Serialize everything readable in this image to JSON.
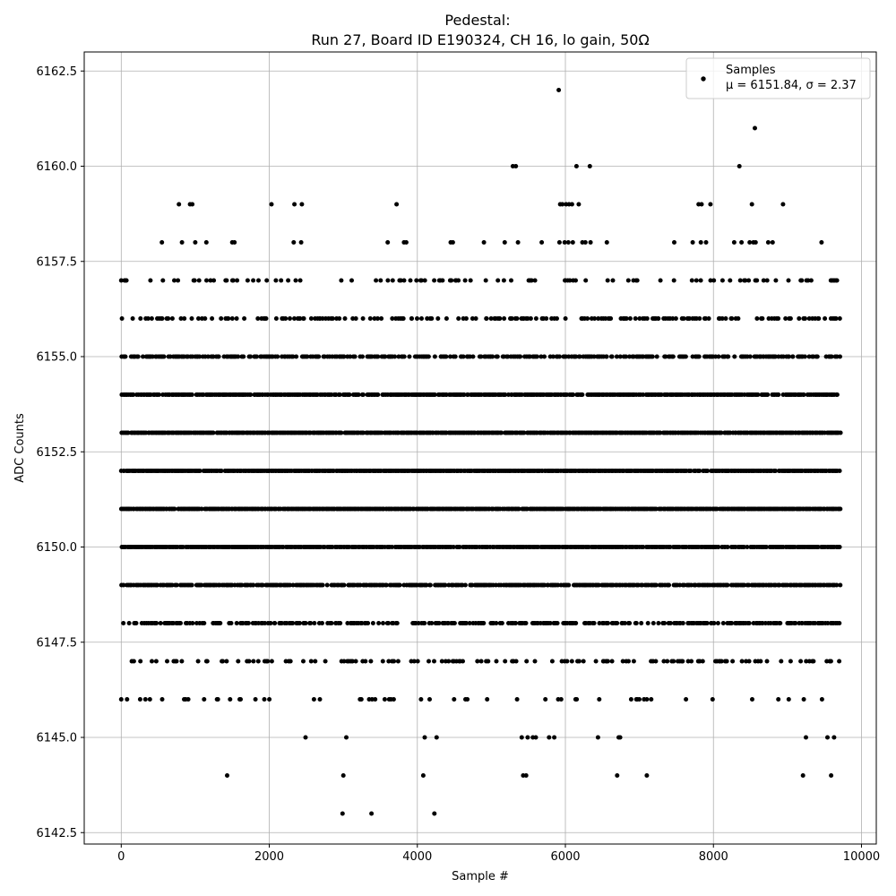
{
  "chart_data": {
    "type": "scatter",
    "title_line1": "Pedestal:",
    "title_line2": "Run 27, Board ID E190324, CH 16, lo gain, 50Ω",
    "xlabel": "Sample #",
    "ylabel": "ADC Counts",
    "xlim": [
      -500,
      10200
    ],
    "ylim": [
      6142.2,
      6163.0
    ],
    "xticks": [
      0,
      2000,
      4000,
      6000,
      8000,
      10000
    ],
    "xtick_labels": [
      "0",
      "2000",
      "4000",
      "6000",
      "8000",
      "10000"
    ],
    "yticks": [
      6142.5,
      6145.0,
      6147.5,
      6150.0,
      6152.5,
      6155.0,
      6157.5,
      6160.0,
      6162.5
    ],
    "ytick_labels": [
      "6142.5",
      "6145.0",
      "6147.5",
      "6150.0",
      "6152.5",
      "6155.0",
      "6157.5",
      "6160.0",
      "6162.5"
    ],
    "grid": true,
    "legend_position": "top-right",
    "marker_color": "#000000",
    "series": [
      {
        "name": "Samples",
        "stats_label": "μ = 6151.84, σ = 2.37",
        "n_samples": 9728,
        "bands": [
          {
            "y": 6148,
            "x_start": 0,
            "x_end": 9720,
            "density": 0.55
          },
          {
            "y": 6149,
            "x_start": 0,
            "x_end": 9720,
            "density": 0.8
          },
          {
            "y": 6150,
            "x_start": 0,
            "x_end": 9720,
            "density": 0.92
          },
          {
            "y": 6151,
            "x_start": 0,
            "x_end": 9720,
            "density": 0.97
          },
          {
            "y": 6152,
            "x_start": 0,
            "x_end": 9720,
            "density": 0.97
          },
          {
            "y": 6153,
            "x_start": 0,
            "x_end": 9720,
            "density": 0.95
          },
          {
            "y": 6154,
            "x_start": 0,
            "x_end": 9720,
            "density": 0.85
          },
          {
            "y": 6155,
            "x_start": 0,
            "x_end": 9720,
            "density": 0.6
          },
          {
            "y": 6156,
            "x_start": 0,
            "x_end": 9720,
            "density": 0.35
          },
          {
            "y": 6147,
            "x_start": 0,
            "x_end": 9720,
            "density": 0.22
          },
          {
            "y": 6157,
            "x_start": 0,
            "x_end": 9720,
            "density": 0.2
          },
          {
            "y": 6146,
            "x_start": 0,
            "x_end": 9720,
            "density": 0.1
          }
        ],
        "sparse_points": [
          [
            0,
            6146
          ],
          [
            60,
            6157
          ],
          [
            40,
            6155
          ],
          [
            550,
            6158
          ],
          [
            780,
            6159
          ],
          [
            820,
            6158
          ],
          [
            930,
            6159
          ],
          [
            960,
            6159
          ],
          [
            1000,
            6158
          ],
          [
            1150,
            6158
          ],
          [
            1430,
            6144
          ],
          [
            1500,
            6158
          ],
          [
            1530,
            6158
          ],
          [
            2030,
            6159
          ],
          [
            2330,
            6158
          ],
          [
            2340,
            6159
          ],
          [
            2430,
            6158
          ],
          [
            2440,
            6159
          ],
          [
            2490,
            6145
          ],
          [
            3000,
            6144
          ],
          [
            2990,
            6143
          ],
          [
            3040,
            6145
          ],
          [
            3380,
            6143
          ],
          [
            3600,
            6158
          ],
          [
            3720,
            6159
          ],
          [
            3820,
            6158
          ],
          [
            3850,
            6158
          ],
          [
            4080,
            6144
          ],
          [
            4100,
            6145
          ],
          [
            4230,
            6143
          ],
          [
            4260,
            6145
          ],
          [
            4450,
            6158
          ],
          [
            4480,
            6158
          ],
          [
            4900,
            6158
          ],
          [
            5180,
            6158
          ],
          [
            5290,
            6160
          ],
          [
            5330,
            6160
          ],
          [
            5360,
            6158
          ],
          [
            5410,
            6145
          ],
          [
            5430,
            6144
          ],
          [
            5470,
            6144
          ],
          [
            5490,
            6145
          ],
          [
            5560,
            6145
          ],
          [
            5600,
            6145
          ],
          [
            5680,
            6158
          ],
          [
            5780,
            6145
          ],
          [
            5850,
            6145
          ],
          [
            5910,
            6162
          ],
          [
            5930,
            6159
          ],
          [
            5960,
            6159
          ],
          [
            6010,
            6159
          ],
          [
            6050,
            6159
          ],
          [
            6090,
            6159
          ],
          [
            5920,
            6158
          ],
          [
            5990,
            6158
          ],
          [
            6040,
            6158
          ],
          [
            6100,
            6158
          ],
          [
            6150,
            6160
          ],
          [
            6180,
            6159
          ],
          [
            6230,
            6158
          ],
          [
            6270,
            6158
          ],
          [
            6330,
            6160
          ],
          [
            6340,
            6158
          ],
          [
            6440,
            6145
          ],
          [
            6560,
            6158
          ],
          [
            6700,
            6144
          ],
          [
            6720,
            6145
          ],
          [
            6740,
            6145
          ],
          [
            7100,
            6144
          ],
          [
            7470,
            6158
          ],
          [
            7720,
            6158
          ],
          [
            7800,
            6159
          ],
          [
            7830,
            6158
          ],
          [
            7840,
            6159
          ],
          [
            7900,
            6158
          ],
          [
            7960,
            6159
          ],
          [
            8280,
            6158
          ],
          [
            8350,
            6160
          ],
          [
            8380,
            6158
          ],
          [
            8490,
            6158
          ],
          [
            8520,
            6159
          ],
          [
            8540,
            6158
          ],
          [
            8570,
            6158
          ],
          [
            8560,
            6161
          ],
          [
            8740,
            6158
          ],
          [
            8800,
            6158
          ],
          [
            8940,
            6159
          ],
          [
            9210,
            6144
          ],
          [
            9250,
            6145
          ],
          [
            9460,
            6158
          ],
          [
            9540,
            6145
          ],
          [
            9590,
            6144
          ],
          [
            9630,
            6145
          ]
        ]
      }
    ]
  }
}
